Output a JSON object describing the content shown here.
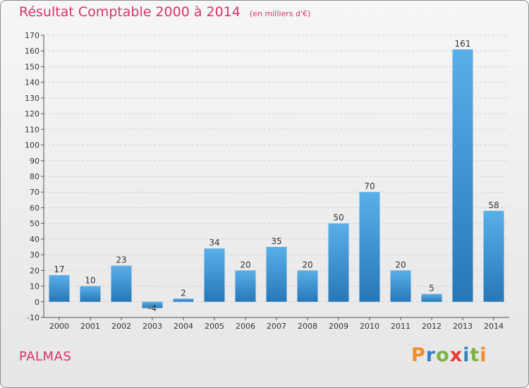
{
  "title": "Résultat Comptable 2000 à 2014",
  "subtitle": "(en milliers d'€)",
  "commune": "PALMAS",
  "logo": {
    "text": "Proxiti",
    "letters": [
      {
        "ch": "P",
        "color": "#f28c28"
      },
      {
        "ch": "r",
        "color": "#3a7fc1"
      },
      {
        "ch": "o",
        "color": "#7cb342"
      },
      {
        "ch": "x",
        "color": "#e53935"
      },
      {
        "ch": "i",
        "color": "#3a7fc1"
      },
      {
        "ch": "t",
        "color": "#7cb342"
      },
      {
        "ch": "i",
        "color": "#f28c28"
      }
    ]
  },
  "colors": {
    "title": "#d6336c",
    "bar_light": "#5aafe8",
    "bar_dark": "#2677b8",
    "grid": "#cfcfcf",
    "axis_text": "#333333"
  },
  "chart_data": {
    "type": "bar",
    "categories": [
      "2000",
      "2001",
      "2002",
      "2003",
      "2004",
      "2005",
      "2006",
      "2007",
      "2008",
      "2009",
      "2010",
      "2011",
      "2012",
      "2013",
      "2014"
    ],
    "values": [
      17,
      10,
      23,
      -4,
      2,
      34,
      20,
      35,
      20,
      50,
      70,
      20,
      5,
      161,
      58
    ],
    "data_labels": [
      "17",
      "10",
      "23",
      "-4",
      "2",
      "34",
      "20",
      "35",
      "20",
      "50",
      "70",
      "20",
      "5",
      "161",
      "58"
    ],
    "ylim": [
      -10,
      170
    ],
    "yticks": [
      -10,
      0,
      10,
      20,
      30,
      40,
      50,
      60,
      70,
      80,
      90,
      100,
      110,
      120,
      130,
      140,
      150,
      160,
      170
    ],
    "ytick_labels": [
      "-10",
      "0",
      "10",
      "20",
      "30",
      "40",
      "50",
      "60",
      "70",
      "80",
      "90",
      "100",
      "110",
      "120",
      "130",
      "140",
      "150",
      "160",
      "170"
    ],
    "grid": "horizontal dashed",
    "legend": "none"
  }
}
